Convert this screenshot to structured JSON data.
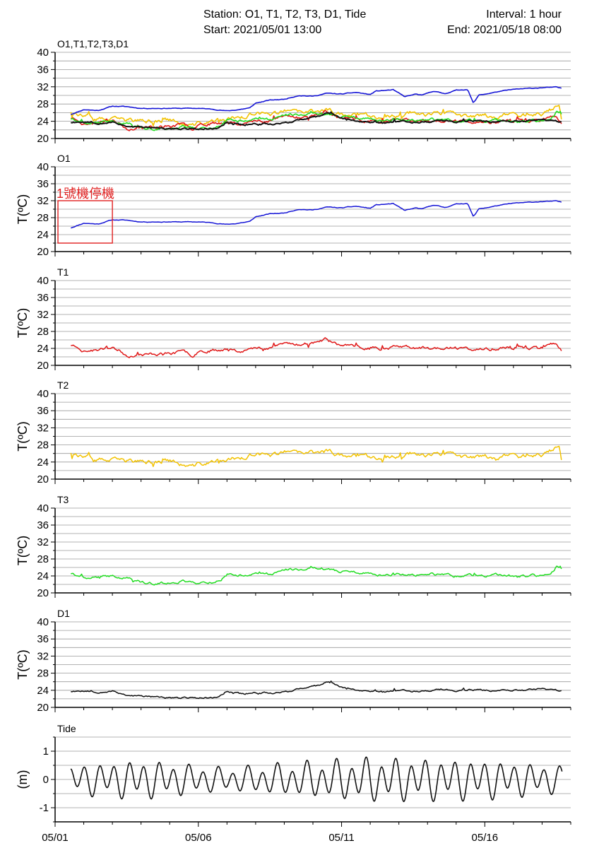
{
  "header": {
    "station": "Station: O1, T1, T2, T3, D1, Tide",
    "start": "Start: 2021/05/01 13:00",
    "interval": "Interval: 1 hour",
    "end": "End: 2021/05/18 08:00"
  },
  "colors": {
    "O1": "#1515d6",
    "T1": "#e01818",
    "T2": "#f2c200",
    "T3": "#22dd22",
    "D1": "#111111",
    "Tide": "#111111",
    "annotation": "#e02020"
  },
  "chart_data": [
    {
      "type": "line",
      "title": "O1,T1,T2,T3,D1",
      "ylabel": "",
      "ylim": [
        20,
        40
      ],
      "yticks": [
        20,
        24,
        28,
        32,
        36,
        40
      ],
      "xticks": [
        "05/01",
        "05/06",
        "05/11",
        "05/16"
      ],
      "grid": true,
      "series": [
        {
          "name": "O1",
          "x": [
            0.55,
            1,
            1.5,
            2,
            2.5,
            3,
            4,
            5,
            5.5,
            6,
            6.3,
            6.8,
            7,
            7.5,
            8,
            8.5,
            9,
            9.5,
            10,
            10.5,
            11,
            11.2,
            11.8,
            12.2,
            12.6,
            12.8,
            13.2,
            13.6,
            14,
            14.4,
            14.6,
            14.8,
            15.1,
            15.5,
            16,
            16.5,
            17,
            17.5,
            17.7
          ],
          "y": [
            25.6,
            26.7,
            26.5,
            27.5,
            27.4,
            27.0,
            27.0,
            27.0,
            26.8,
            26.4,
            26.6,
            27.1,
            28.2,
            28.9,
            29.1,
            30.0,
            29.8,
            30.5,
            30.3,
            30.7,
            30.2,
            31.0,
            31.3,
            29.7,
            30.3,
            30.0,
            31.0,
            30.4,
            31.2,
            31.4,
            28.2,
            30.1,
            30.4,
            30.9,
            31.4,
            31.6,
            31.8,
            31.9,
            31.6
          ]
        },
        {
          "name": "T1",
          "x": [
            0.55,
            0.8,
            1.0,
            1.5,
            2.0,
            2.5,
            2.8,
            3.0,
            3.5,
            4.0,
            4.5,
            4.8,
            5.0,
            5.5,
            6.0,
            6.5,
            7.0,
            7.5,
            8.0,
            8.5,
            9.0,
            9.5,
            10.0,
            10.5,
            11.0,
            11.5,
            12.0,
            12.5,
            13.0,
            13.5,
            14.0,
            14.5,
            15.0,
            15.5,
            16.0,
            16.5,
            17.0,
            17.3,
            17.5,
            17.7
          ],
          "y": [
            24.8,
            24.5,
            23.4,
            23.6,
            24.5,
            22.4,
            22.3,
            22.4,
            22.7,
            22.8,
            23.2,
            22.4,
            23.4,
            23.6,
            23.9,
            23.5,
            24.0,
            24.3,
            25.3,
            24.9,
            25.4,
            26.2,
            24.6,
            24.3,
            24.2,
            24.0,
            24.4,
            24.2,
            24.0,
            24.1,
            24.0,
            23.8,
            23.7,
            24.0,
            24.2,
            24.1,
            24.3,
            24.9,
            25.2,
            23.4
          ]
        },
        {
          "name": "T2",
          "x": [
            0.55,
            0.8,
            1.0,
            1.5,
            2.0,
            2.5,
            3.0,
            3.5,
            4.0,
            4.5,
            4.8,
            5.0,
            5.5,
            6.0,
            6.5,
            7.0,
            7.5,
            8.0,
            8.5,
            9.0,
            9.5,
            10.0,
            10.5,
            11.0,
            11.5,
            12.0,
            12.5,
            13.0,
            13.5,
            14.0,
            14.5,
            15.0,
            15.5,
            16.0,
            16.5,
            17.0,
            17.3,
            17.6,
            17.7
          ],
          "y": [
            26.3,
            25.8,
            25.0,
            24.5,
            24.3,
            24.4,
            24.0,
            24.0,
            24.4,
            23.0,
            22.9,
            23.5,
            24.0,
            24.5,
            25.0,
            25.8,
            25.5,
            26.3,
            26.0,
            26.2,
            26.6,
            25.7,
            25.4,
            25.5,
            24.8,
            25.4,
            26.3,
            25.6,
            25.9,
            25.5,
            24.9,
            25.4,
            25.0,
            26.1,
            25.3,
            25.6,
            26.7,
            27.8,
            24.0
          ]
        },
        {
          "name": "T3",
          "x": [
            0.55,
            1.0,
            1.5,
            2.0,
            2.5,
            3.0,
            3.5,
            4.0,
            4.5,
            5.0,
            5.5,
            5.8,
            6.0,
            6.5,
            7.0,
            7.5,
            8.0,
            8.5,
            9.0,
            9.5,
            10.0,
            10.5,
            11.0,
            11.5,
            12.0,
            12.5,
            13.0,
            13.5,
            14.0,
            14.5,
            15.0,
            15.5,
            16.0,
            16.5,
            17.0,
            17.3,
            17.5,
            17.7
          ],
          "y": [
            24.6,
            23.6,
            23.7,
            24.0,
            23.6,
            22.6,
            22.1,
            22.4,
            22.8,
            22.4,
            22.5,
            23.2,
            24.4,
            24.2,
            24.5,
            24.4,
            25.8,
            25.5,
            26.0,
            25.7,
            25.0,
            24.8,
            24.4,
            24.1,
            24.4,
            24.2,
            24.6,
            24.3,
            24.0,
            24.2,
            23.8,
            24.2,
            24.0,
            24.2,
            24.1,
            24.4,
            26.2,
            25.8
          ]
        },
        {
          "name": "D1",
          "x": [
            0.55,
            1.0,
            1.5,
            2.0,
            2.5,
            3.0,
            3.5,
            4.0,
            4.5,
            5.0,
            5.5,
            5.8,
            6.0,
            6.5,
            7.0,
            7.5,
            8.0,
            8.5,
            9.0,
            9.3,
            9.5,
            10.0,
            10.5,
            11.0,
            11.5,
            12.0,
            12.5,
            13.0,
            13.5,
            14.0,
            14.5,
            15.0,
            15.5,
            16.0,
            16.5,
            17.0,
            17.3,
            17.5,
            17.7
          ],
          "y": [
            23.8,
            23.9,
            23.6,
            23.8,
            22.9,
            22.6,
            22.5,
            22.1,
            22.3,
            22.2,
            22.3,
            22.8,
            23.9,
            23.1,
            23.4,
            23.4,
            23.6,
            24.3,
            24.8,
            25.3,
            26.0,
            24.8,
            24.0,
            23.8,
            23.7,
            24.0,
            23.8,
            23.9,
            24.2,
            23.8,
            24.2,
            24.0,
            23.9,
            24.1,
            24.0,
            24.5,
            24.1,
            24.0,
            23.9
          ]
        }
      ],
      "annotation_text": "",
      "legend": "none"
    },
    {
      "type": "line",
      "title": "O1",
      "ylabel": "T(ºC)",
      "ylim": [
        20,
        40
      ],
      "yticks": [
        20,
        24,
        28,
        32,
        36,
        40
      ],
      "grid": true,
      "series_ref": "O1",
      "annotation": {
        "text": "1號機停機",
        "x_range": [
          0.1,
          2.0
        ],
        "y_range": [
          22,
          32
        ]
      }
    },
    {
      "type": "line",
      "title": "T1",
      "ylabel": "T(ºC)",
      "ylim": [
        20,
        40
      ],
      "grid": true,
      "series_ref": "T1"
    },
    {
      "type": "line",
      "title": "T2",
      "ylabel": "T(ºC)",
      "ylim": [
        20,
        40
      ],
      "grid": true,
      "series_ref": "T2"
    },
    {
      "type": "line",
      "title": "T3",
      "ylabel": "T(ºC)",
      "ylim": [
        20,
        40
      ],
      "grid": true,
      "series_ref": "T3"
    },
    {
      "type": "line",
      "title": "D1",
      "ylabel": "T(ºC)",
      "ylim": [
        20,
        40
      ],
      "grid": true,
      "series_ref": "D1"
    },
    {
      "type": "line",
      "title": "Tide",
      "ylabel": "(m)",
      "ylim": [
        -1.5,
        1.5
      ],
      "yticks": [
        -1,
        0,
        1
      ],
      "grid": true,
      "series": [
        {
          "name": "Tide",
          "x_start": 0.55,
          "x_end": 17.7,
          "amplitude_days": [
            0.5,
            3,
            6,
            9,
            11,
            13,
            15,
            18
          ],
          "amplitude_m": [
            0.55,
            0.75,
            0.45,
            0.7,
            0.85,
            0.8,
            0.75,
            0.5
          ],
          "mean_m": 0.0
        }
      ]
    }
  ],
  "x_axis": {
    "days": 18,
    "tick_labels": [
      "05/01",
      "05/06",
      "05/11",
      "05/16"
    ],
    "tick_days": [
      0,
      5,
      10,
      15
    ]
  }
}
